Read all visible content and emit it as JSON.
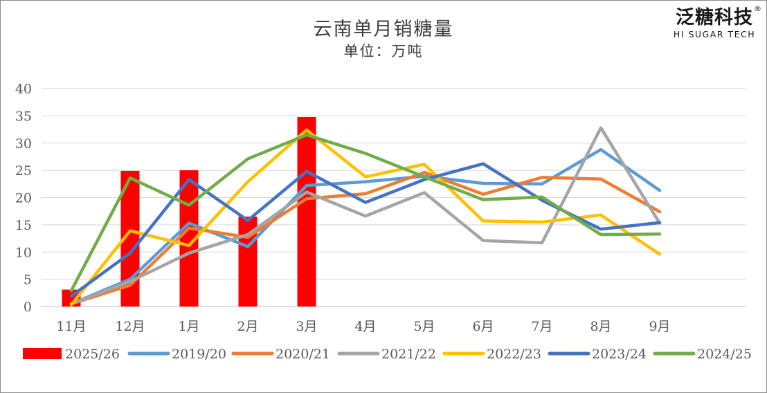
{
  "brand": {
    "name_cn": "泛糖科技",
    "name_en": "HI SUGAR TECH",
    "registered_mark": "®"
  },
  "chart_data": {
    "type": "bar+line",
    "title": "云南单月销糖量",
    "subtitle": "单位：万吨",
    "categories": [
      "11月",
      "12月",
      "1月",
      "2月",
      "3月",
      "4月",
      "5月",
      "6月",
      "7月",
      "8月",
      "9月"
    ],
    "ylim": [
      0,
      40
    ],
    "yticks": [
      0,
      5,
      10,
      15,
      20,
      25,
      30,
      35,
      40
    ],
    "grid": true,
    "legend_position": "bottom",
    "bar_series": {
      "name": "2025/26",
      "color": "#ff0000",
      "values": [
        3.1,
        24.9,
        25.0,
        16.5,
        34.8
      ]
    },
    "line_series": [
      {
        "name": "2019/20",
        "color": "#5b9bd5",
        "values": [
          0.5,
          5.0,
          15.3,
          11.0,
          22.2,
          22.9,
          23.9,
          22.6,
          22.5,
          28.8,
          21.3
        ]
      },
      {
        "name": "2020/21",
        "color": "#ed7d31",
        "values": [
          0.5,
          3.9,
          14.4,
          12.7,
          19.8,
          20.7,
          24.6,
          20.6,
          23.7,
          23.4,
          17.4
        ]
      },
      {
        "name": "2021/22",
        "color": "#a5a5a5",
        "values": [
          0.5,
          4.6,
          9.8,
          13.2,
          21.0,
          16.6,
          20.9,
          12.1,
          11.7,
          32.8,
          15.3
        ]
      },
      {
        "name": "2022/23",
        "color": "#ffc000",
        "values": [
          0.3,
          13.9,
          11.2,
          22.9,
          32.4,
          23.8,
          26.1,
          15.7,
          15.5,
          16.8,
          9.6
        ]
      },
      {
        "name": "2023/24",
        "color": "#4472c4",
        "values": [
          1.9,
          9.8,
          23.3,
          15.8,
          24.8,
          19.1,
          23.3,
          26.2,
          19.5,
          14.2,
          15.4
        ]
      },
      {
        "name": "2024/25",
        "color": "#70ad47",
        "values": [
          2.9,
          23.6,
          18.6,
          27.1,
          31.5,
          28.1,
          23.8,
          19.6,
          20.1,
          13.2,
          13.3
        ]
      }
    ]
  }
}
